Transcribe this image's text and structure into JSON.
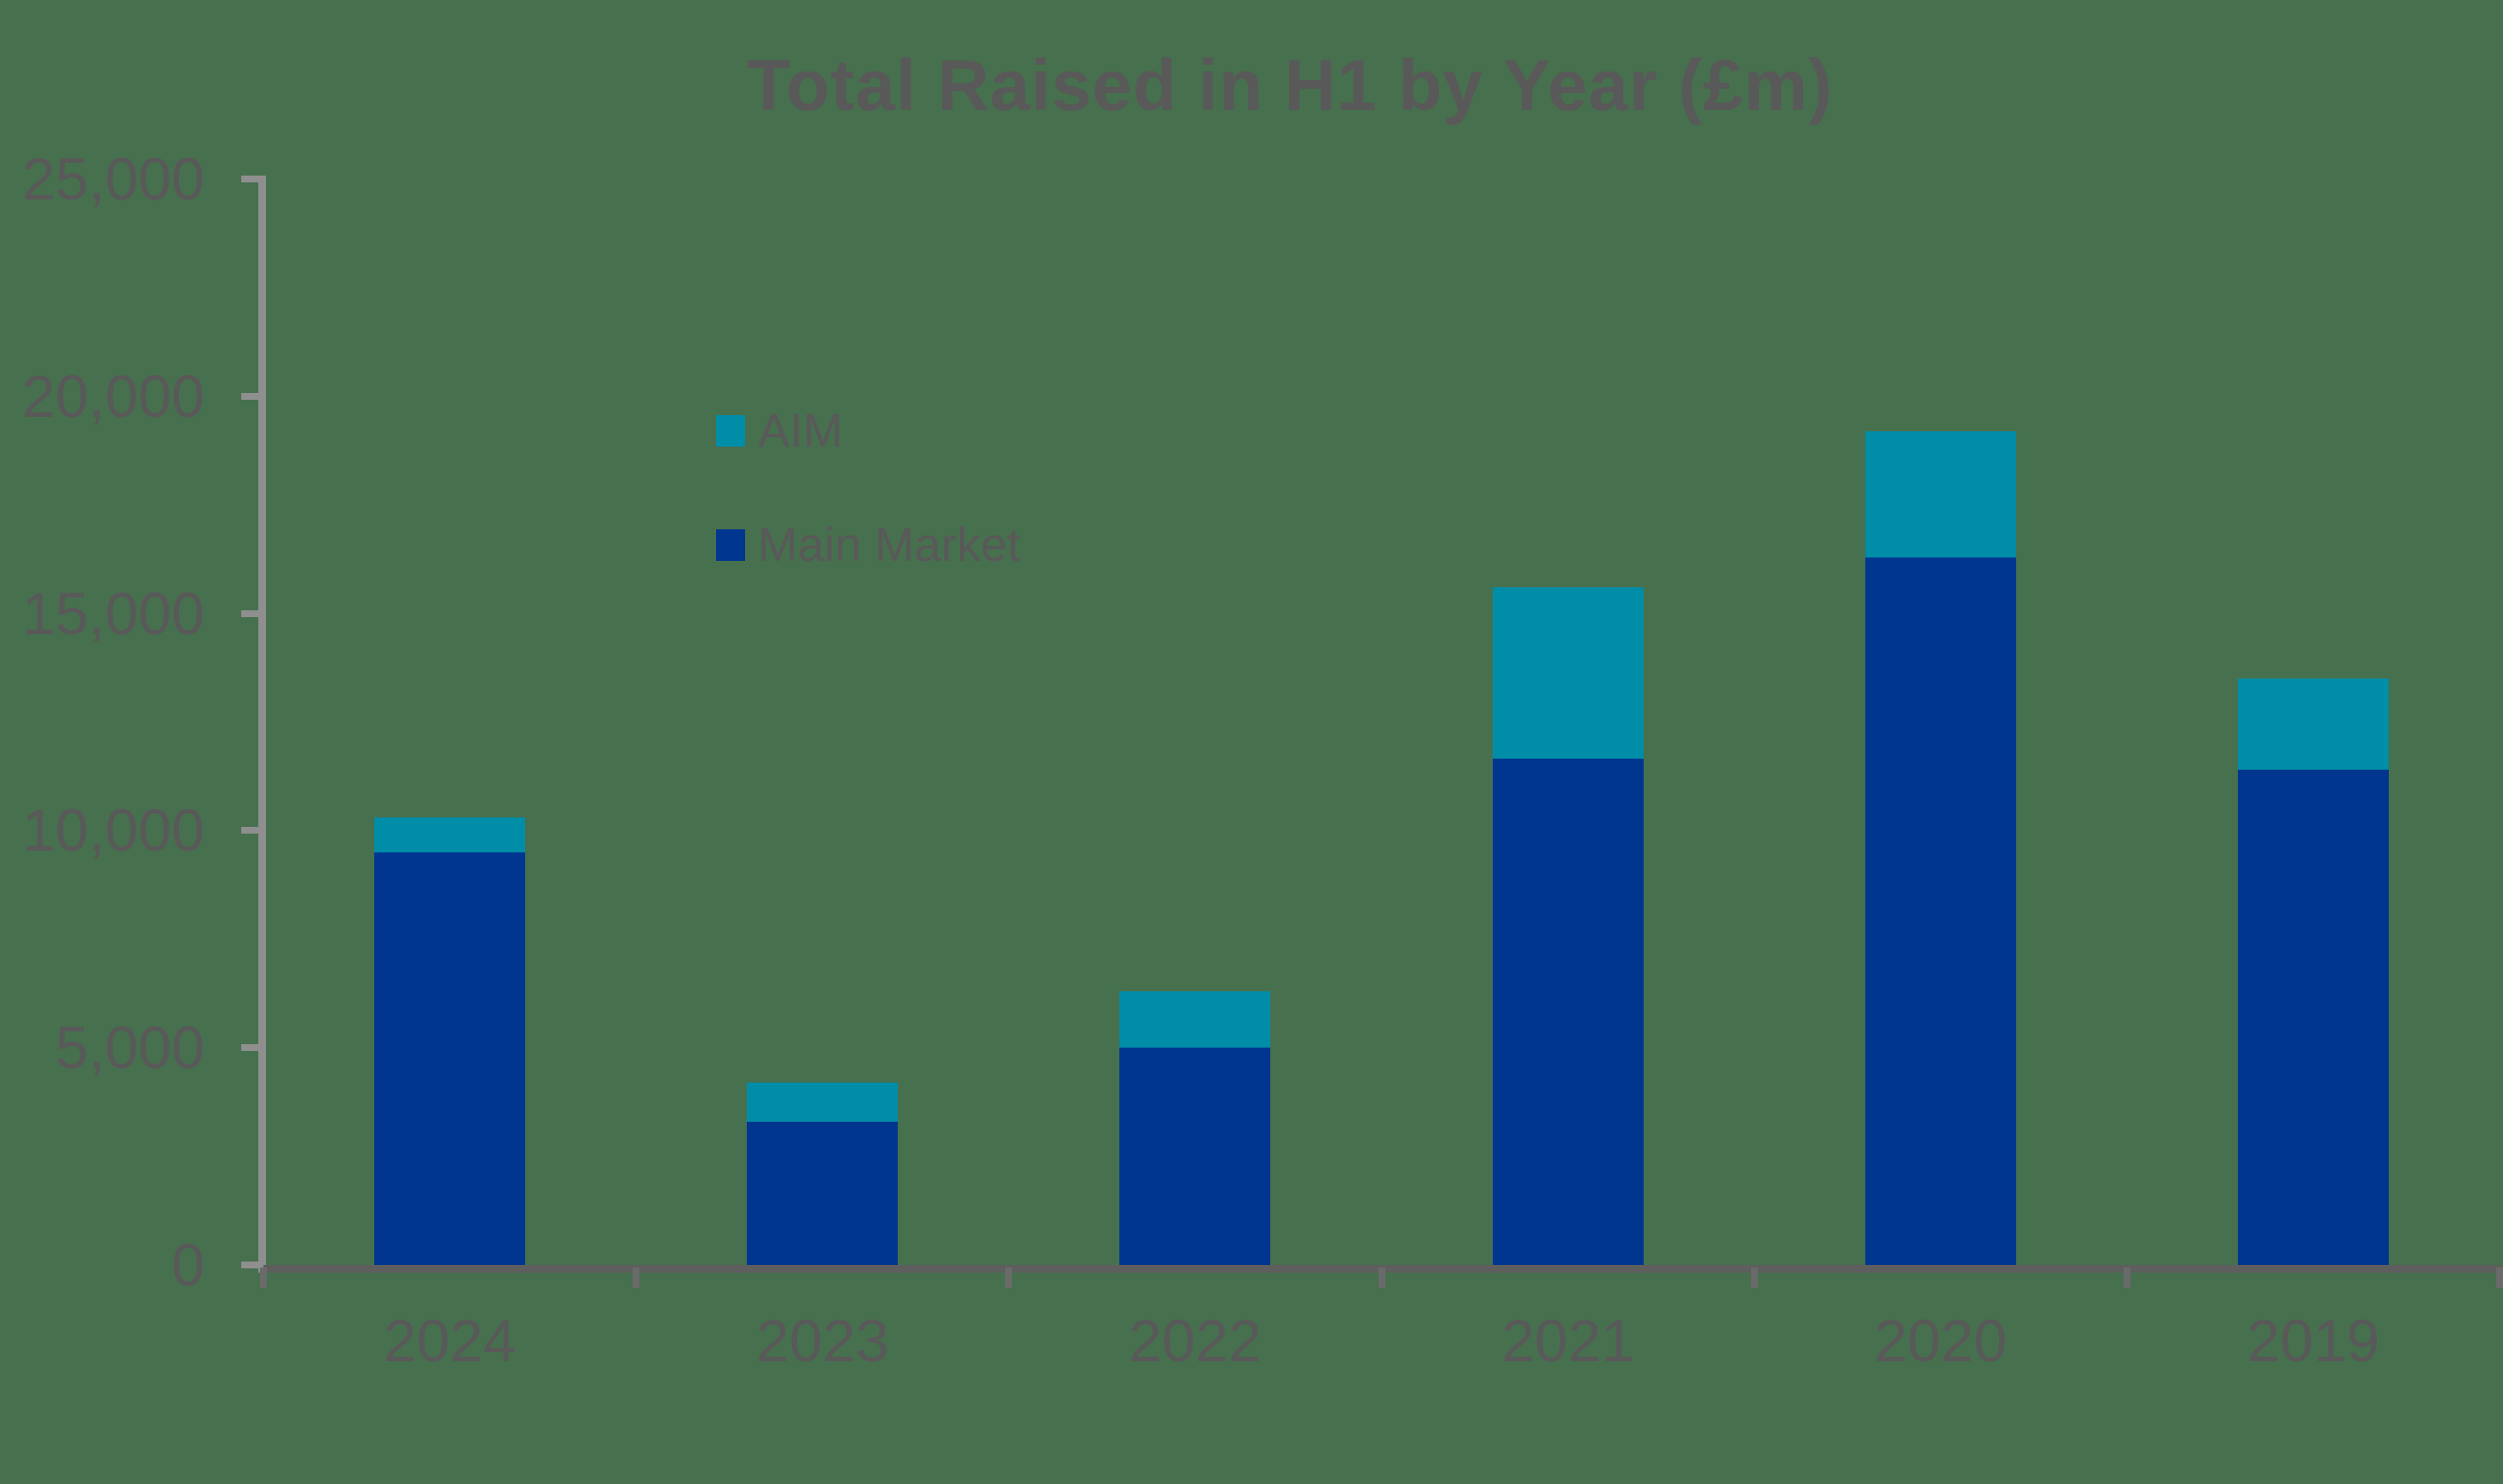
{
  "title": "Total Raised in H1 by Year (£m)",
  "legend": {
    "items": [
      {
        "label": "AIM",
        "color": "#008DA8"
      },
      {
        "label": "Main Market",
        "color": "#003690"
      }
    ]
  },
  "colors": {
    "background": "#47704E",
    "text": "#595959",
    "y_axis_line": "#8F8F8F",
    "x_axis_line": "#5E5E5E",
    "aim": "#008DA8",
    "main_market": "#003690"
  },
  "chart_data": {
    "type": "bar",
    "stacked": true,
    "title": "Total Raised in H1 by Year (£m)",
    "xlabel": "",
    "ylabel": "",
    "categories": [
      "2024",
      "2023",
      "2022",
      "2021",
      "2020",
      "2019"
    ],
    "series": [
      {
        "name": "Main Market",
        "color": "#003690",
        "values": [
          9500,
          3300,
          5000,
          11650,
          16300,
          11400
        ]
      },
      {
        "name": "AIM",
        "color": "#008DA8",
        "values": [
          800,
          900,
          1300,
          3950,
          2900,
          2100
        ]
      }
    ],
    "totals": [
      10300,
      4200,
      6300,
      15600,
      19200,
      13500
    ],
    "ylim": [
      0,
      25000
    ],
    "y_ticks": [
      0,
      5000,
      10000,
      15000,
      20000,
      25000
    ],
    "y_tick_labels": [
      "0",
      "5,000",
      "10,000",
      "15,000",
      "20,000",
      "25,000"
    ],
    "gridlines": false,
    "legend_position": "inside-upper-left"
  }
}
